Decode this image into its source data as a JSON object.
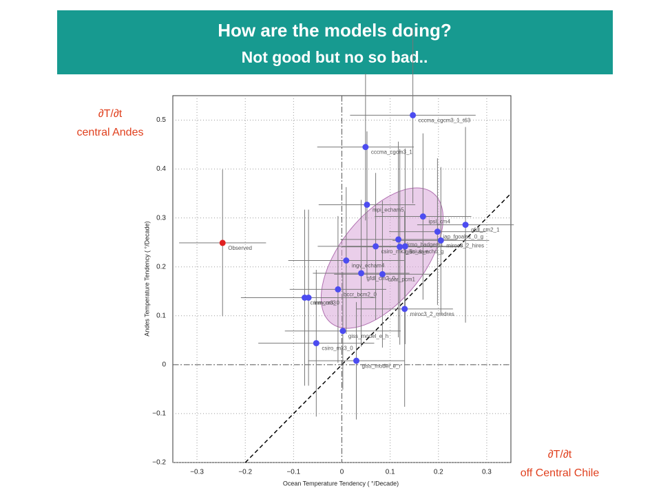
{
  "chart_data": {
    "type": "scatter",
    "title": "How are the models doing?",
    "subtitle": "Not good but no so bad..",
    "annotations": [
      "∂T/∂t",
      "central Andes",
      "∂T/∂t",
      "off Central Chile"
    ],
    "xlabel": "Ocean Temperature Tendency ( °/Decade)",
    "ylabel": "Andes Temperature Tendency ( °/Decade)",
    "point_labels": [
      "Observed",
      "cccma_cgcm3_1_t63",
      "cccma_cgcm3_1",
      "mpi_echam5",
      "ipsl_cm4",
      "gfdl_cm2_1",
      "ukmo_hadgem1",
      "iap_fgoals1_0_g",
      "miroc3_2_hires",
      "csiro_mk3_5",
      "giss_aom",
      "miub_echo_g",
      "ingv_echam4",
      "ncar_pcm1",
      "gfdl_cm2_0",
      "bccr_bcm2_0",
      "inmcm3_0",
      "cnrm_cm3",
      "miroc3_2_medres",
      "giss_model_e_h",
      "csiro_mk3_0",
      "giss_model_e_r"
    ],
    "x": [
      -0.247,
      0.147,
      0.049,
      0.052,
      0.168,
      0.256,
      0.117,
      0.198,
      0.205,
      0.07,
      0.12,
      0.131,
      0.009,
      0.084,
      0.04,
      -0.008,
      -0.069,
      -0.077,
      0.13,
      0.002,
      -0.053,
      0.03
    ],
    "y": [
      0.249,
      0.51,
      0.445,
      0.327,
      0.303,
      0.286,
      0.256,
      0.272,
      0.254,
      0.242,
      0.241,
      0.242,
      0.213,
      0.185,
      0.187,
      0.154,
      0.137,
      0.137,
      0.114,
      0.069,
      0.044,
      0.008
    ],
    "xerr": [
      0.09,
      0.13,
      0.1,
      0.1,
      0.1,
      0.1,
      0.12,
      0.1,
      0.1,
      0.12,
      0.12,
      0.12,
      0.12,
      0.1,
      0.1,
      0.1,
      0.14,
      0.12,
      0.1,
      0.12,
      0.12,
      0.1
    ],
    "yerr": [
      0.15,
      0.18,
      0.15,
      0.15,
      0.17,
      0.2,
      0.2,
      0.15,
      0.15,
      0.15,
      0.2,
      0.2,
      0.15,
      0.15,
      0.15,
      0.15,
      0.18,
      0.18,
      0.2,
      0.12,
      0.15,
      0.12
    ],
    "colors": [
      "#e02020",
      "#4c4cf0",
      "#4c4cf0",
      "#4c4cf0",
      "#4c4cf0",
      "#4c4cf0",
      "#4c4cf0",
      "#4c4cf0",
      "#4c4cf0",
      "#4c4cf0",
      "#4c4cf0",
      "#4c4cf0",
      "#4c4cf0",
      "#4c4cf0",
      "#4c4cf0",
      "#4c4cf0",
      "#4c4cf0",
      "#4c4cf0",
      "#4c4cf0",
      "#4c4cf0",
      "#4c4cf0",
      "#4c4cf0"
    ],
    "xlim": [
      -0.35,
      0.35
    ],
    "ylim": [
      -0.2,
      0.55
    ],
    "xticks": [
      {
        "value": -0.3,
        "label": "−0.3"
      },
      {
        "value": -0.2,
        "label": "−0.2"
      },
      {
        "value": -0.1,
        "label": "−0.1"
      },
      0,
      0.1,
      0.2,
      0.3
    ],
    "yticks": [
      {
        "value": -0.2,
        "label": "−0.2"
      },
      {
        "value": -0.1,
        "label": "−0.1"
      },
      0,
      0.1,
      0.2,
      0.3,
      0.4,
      0.5
    ],
    "grid": true
  }
}
